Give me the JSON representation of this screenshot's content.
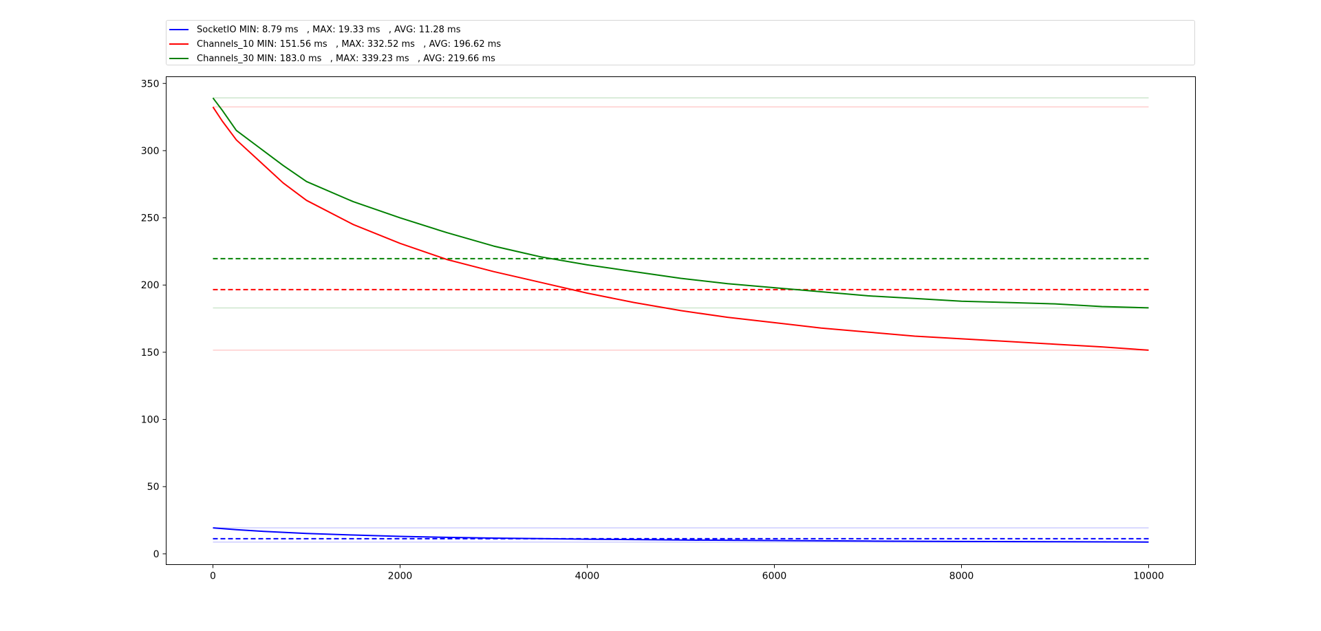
{
  "chart_data": {
    "type": "line",
    "title": "",
    "xlabel": "",
    "ylabel": "",
    "xlim": [
      -500,
      10500
    ],
    "ylim": [
      -8,
      355
    ],
    "x_ticks": [
      0,
      2000,
      4000,
      6000,
      8000,
      10000
    ],
    "y_ticks": [
      0,
      50,
      100,
      150,
      200,
      250,
      300,
      350
    ],
    "grid": false,
    "legend_position": "top",
    "series": [
      {
        "name": "SocketIO",
        "color": "#0000ff",
        "legend_label": "SocketIO MIN: 8.79 ms   , MAX: 19.33 ms   , AVG: 11.28 ms",
        "min": 8.79,
        "max": 19.33,
        "avg": 11.28,
        "x": [
          0,
          250,
          500,
          1000,
          1500,
          2000,
          2500,
          3000,
          3500,
          4000,
          5000,
          6000,
          7000,
          8000,
          9000,
          10000
        ],
        "y": [
          19.33,
          18.0,
          16.9,
          15.2,
          14.0,
          13.0,
          12.3,
          11.7,
          11.3,
          10.9,
          10.3,
          9.9,
          9.5,
          9.2,
          9.0,
          8.79
        ]
      },
      {
        "name": "Channels_10",
        "color": "#ff0000",
        "legend_label": "Channels_10 MIN: 151.56 ms   , MAX: 332.52 ms   , AVG: 196.62 ms",
        "min": 151.56,
        "max": 332.52,
        "avg": 196.62,
        "x": [
          0,
          100,
          250,
          500,
          750,
          1000,
          1500,
          2000,
          2500,
          3000,
          3500,
          4000,
          4500,
          5000,
          5500,
          6000,
          6500,
          7000,
          7500,
          8000,
          8500,
          9000,
          9500,
          10000
        ],
        "y": [
          332.52,
          322,
          308,
          292,
          276,
          263,
          245,
          231,
          219,
          210,
          202,
          194,
          187,
          181,
          176,
          172,
          168,
          165,
          162,
          160,
          158,
          156,
          154,
          151.56
        ]
      },
      {
        "name": "Channels_30",
        "color": "#008000",
        "legend_label": "Channels_30 MIN: 183.0 ms   , MAX: 339.23 ms   , AVG: 219.66 ms",
        "min": 183.0,
        "max": 339.23,
        "avg": 219.66,
        "x": [
          0,
          100,
          250,
          500,
          750,
          1000,
          1500,
          2000,
          2500,
          3000,
          3500,
          4000,
          4500,
          5000,
          5500,
          6000,
          6500,
          7000,
          7500,
          8000,
          8500,
          9000,
          9500,
          10000
        ],
        "y": [
          339.23,
          330,
          315,
          302,
          289,
          277,
          262,
          250,
          239,
          229,
          221,
          215,
          210,
          205,
          201,
          198,
          195,
          192,
          190,
          188,
          187,
          186,
          184,
          183.0
        ]
      }
    ]
  }
}
